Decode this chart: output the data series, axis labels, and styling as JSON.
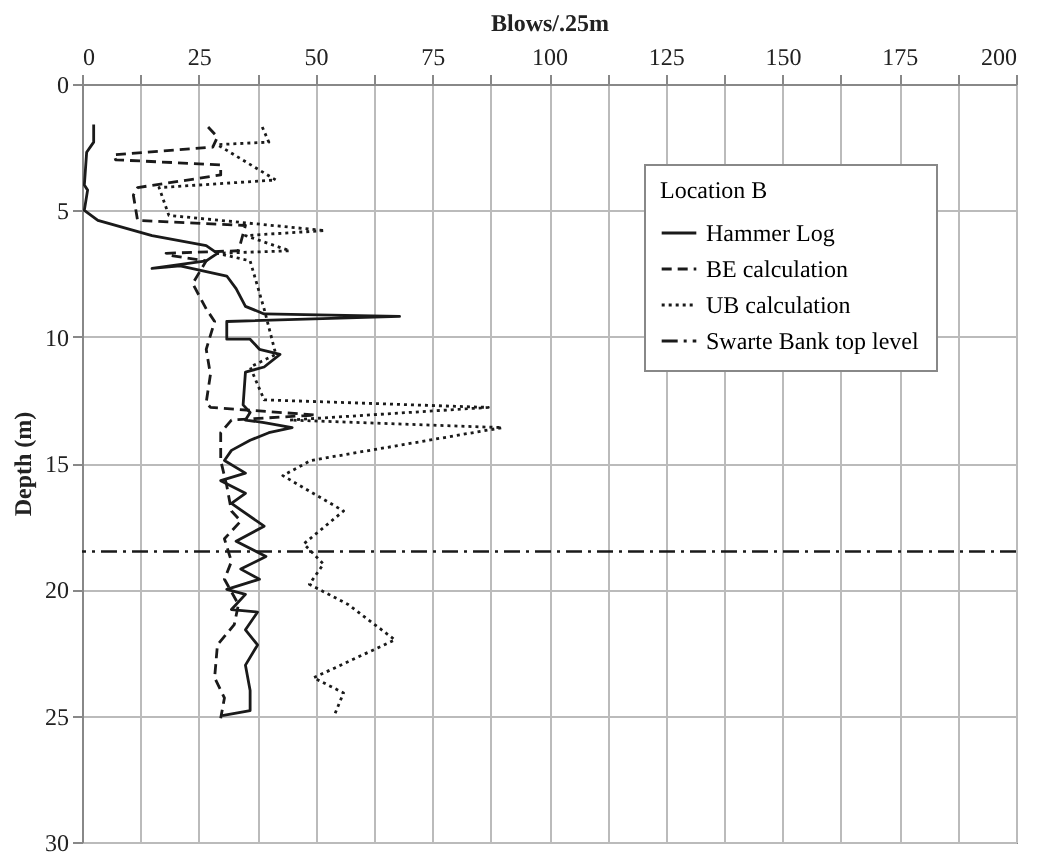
{
  "chart_data": {
    "type": "line",
    "xlabel": "Blows/.25m",
    "ylabel": "Depth (m)",
    "legend_title": "Location B",
    "legend": "top right",
    "grid": true,
    "xlim": [
      0,
      200
    ],
    "xticks": [
      0,
      {
        "value": 12.5,
        "label": null
      },
      25,
      {
        "value": 37.5,
        "label": null
      },
      50,
      {
        "value": 62.5,
        "label": null
      },
      75,
      {
        "value": 87.5,
        "label": null
      },
      100,
      {
        "value": 112.5,
        "label": null
      },
      125,
      {
        "value": 137.5,
        "label": null
      },
      150,
      {
        "value": 162.5,
        "label": null
      },
      175,
      {
        "value": 187.5,
        "label": null
      },
      200
    ],
    "ylim": [
      30,
      0
    ],
    "yticks": [
      0,
      5,
      10,
      15,
      20,
      25,
      30
    ],
    "series": [
      {
        "name": "Hammer Log",
        "color": "#1a1a1a",
        "line_style": "solid",
        "x": [
          2.5,
          2.5,
          1,
          0.5,
          1.2,
          0.5,
          3.4,
          15,
          26.6,
          29,
          26.6,
          15,
          21,
          31,
          33,
          35,
          39,
          68,
          31,
          31,
          36,
          38,
          42.4,
          39,
          35,
          34.5,
          36,
          35,
          39,
          45,
          40,
          36,
          32,
          30.5,
          35,
          29.7,
          35,
          32,
          39,
          33,
          39.4,
          34,
          38,
          31,
          35,
          32,
          37.6,
          35,
          37.6,
          35,
          36,
          36,
          30
        ],
        "values": [
          1.6,
          2.3,
          2.7,
          4.0,
          4.2,
          5.0,
          5.4,
          6.0,
          6.4,
          6.7,
          7.0,
          7.3,
          7.2,
          7.6,
          8.1,
          8.8,
          9.1,
          9.2,
          9.4,
          10.1,
          10.1,
          10.5,
          10.7,
          11.2,
          11.4,
          12.7,
          13,
          13.3,
          13.4,
          13.6,
          13.8,
          14.1,
          14.5,
          14.9,
          15.4,
          15.7,
          16.2,
          16.6,
          17.5,
          18.1,
          18.7,
          19.2,
          19.6,
          20,
          20.2,
          20.8,
          20.9,
          21.6,
          22.2,
          23,
          24,
          24.8,
          25
        ]
      },
      {
        "name": "BE calculation",
        "color": "#1a1a1a",
        "line_style": "dashed",
        "x": [
          27,
          29,
          28,
          6.8,
          7.2,
          29.7,
          29.7,
          11.9,
          11,
          11.9,
          35,
          33.5,
          18,
          19.5,
          26.6,
          23.7,
          26.6,
          28.4,
          26.6,
          27.5,
          26.6,
          27.5,
          50,
          32,
          29.7,
          29.7,
          31,
          32,
          34,
          30.5,
          32,
          30.5,
          33.5,
          32.6,
          29,
          28.4,
          30.5,
          29.7
        ],
        "values": [
          1.7,
          2.1,
          2.5,
          2.8,
          3.0,
          3.2,
          3.6,
          4.1,
          4.4,
          5.4,
          5.6,
          6.6,
          6.7,
          6.8,
          7.0,
          7.9,
          8.9,
          9.4,
          10.5,
          11.5,
          12.6,
          12.8,
          13.1,
          13.3,
          13.8,
          14.9,
          15.9,
          16.9,
          17.3,
          18,
          18.9,
          19.6,
          20.6,
          21.4,
          22.2,
          23.5,
          24.3,
          25.1
        ]
      },
      {
        "name": "UB calculation",
        "color": "#1a1a1a",
        "line_style": "dotted",
        "x": [
          38.6,
          40,
          29,
          41.5,
          16.5,
          18.6,
          52,
          35,
          44.5,
          29,
          36,
          39,
          41.5,
          36,
          39,
          87,
          44.5,
          90,
          49,
          43,
          56,
          47.5,
          51.7,
          48.7,
          57,
          67,
          49.6,
          56,
          54
        ],
        "values": [
          1.7,
          2.3,
          2.4,
          3.8,
          4.1,
          5.2,
          5.8,
          6.0,
          6.6,
          6.7,
          7.0,
          8.9,
          10.7,
          11.2,
          12.5,
          12.8,
          13.3,
          13.6,
          14.9,
          15.5,
          16.9,
          18.2,
          19,
          19.8,
          20.6,
          22,
          23.5,
          24.1,
          25
        ]
      }
    ],
    "ref_lines": [
      {
        "axis": "y",
        "value": 18.5,
        "label": "Swarte Bank top level",
        "color": "#1a1a1a",
        "line_style": "dashdot"
      }
    ]
  }
}
